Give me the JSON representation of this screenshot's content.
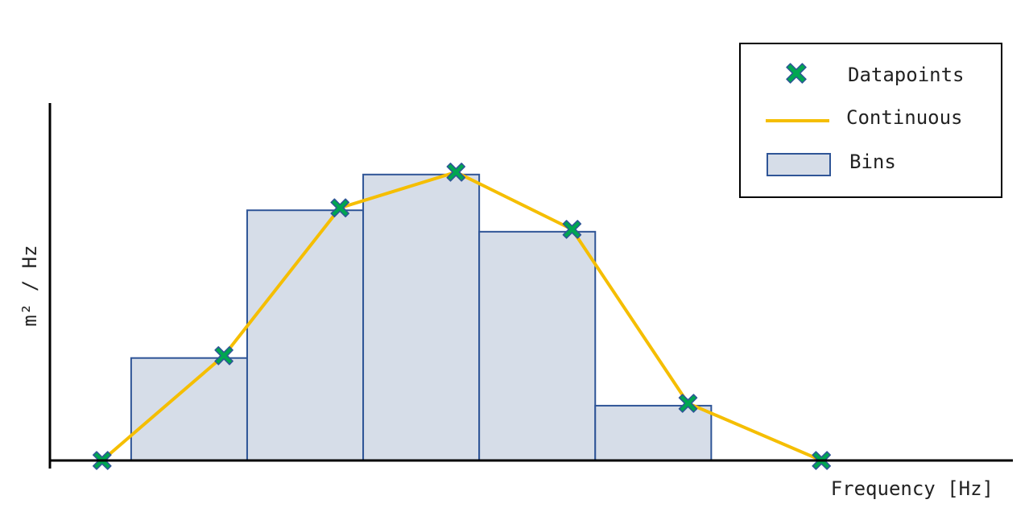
{
  "chart_data": {
    "type": "bar",
    "xlabel": "Frequency [Hz]",
    "ylabel": "m² / Hz",
    "grid": false,
    "legend_position": "top-right",
    "legend": [
      {
        "key": "datapoints",
        "label": "Datapoints"
      },
      {
        "key": "continuous",
        "label": "Continuous"
      },
      {
        "key": "bins",
        "label": "Bins"
      }
    ],
    "xlim": [
      0,
      16.6
    ],
    "ylim": [
      0,
      7.5
    ],
    "bins": [
      {
        "x0": 1.4,
        "x1": 3.4,
        "value": 2.15
      },
      {
        "x0": 3.4,
        "x1": 5.4,
        "value": 5.25
      },
      {
        "x0": 5.4,
        "x1": 7.4,
        "value": 6.0
      },
      {
        "x0": 7.4,
        "x1": 9.4,
        "value": 4.8
      },
      {
        "x0": 9.4,
        "x1": 11.4,
        "value": 1.15
      }
    ],
    "series": [
      {
        "name": "Datapoints",
        "x": [
          0.9,
          3.0,
          5.0,
          7.0,
          9.0,
          11.0,
          13.3
        ],
        "y": [
          0.0,
          2.2,
          5.3,
          6.05,
          4.85,
          1.2,
          0.0
        ]
      },
      {
        "name": "Continuous",
        "x": [
          0.9,
          3.0,
          5.0,
          7.0,
          9.0,
          11.0,
          13.3
        ],
        "y": [
          0.0,
          2.2,
          5.3,
          6.05,
          4.85,
          1.2,
          0.0
        ]
      }
    ],
    "colors": {
      "bin_fill": "#d6dde8",
      "bin_stroke": "#2f5597",
      "line": "#f5be00",
      "marker_fill": "#00a651",
      "marker_stroke": "#2f5597",
      "axis": "#000000"
    }
  }
}
